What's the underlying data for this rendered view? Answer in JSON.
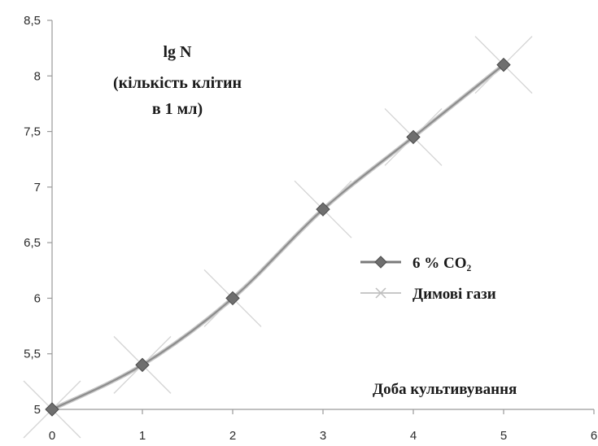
{
  "chart_data": {
    "type": "line",
    "x": [
      0,
      1,
      2,
      3,
      4,
      5
    ],
    "series": [
      {
        "name": "6 % CO₂",
        "values": [
          5,
          5.4,
          6,
          6.8,
          7.45,
          8.1
        ],
        "color": "#7a7a7a",
        "marker": "diamond"
      },
      {
        "name": "Димові гази",
        "values": [
          5,
          5.4,
          6,
          6.8,
          7.45,
          8.1
        ],
        "color": "#c8c8c8",
        "marker": "x"
      }
    ],
    "x_ticks": [
      "0",
      "1",
      "2",
      "3",
      "4",
      "5",
      "6"
    ],
    "y_ticks": [
      "5",
      "5,5",
      "6",
      "6,5",
      "7",
      "7,5",
      "8",
      "8,5"
    ],
    "xlim": [
      0,
      6
    ],
    "ylim": [
      5,
      8.5
    ],
    "ylabel_lines": [
      "lg N",
      "(кількість клітин",
      "в 1 мл)"
    ],
    "xlabel": "Доба культивування",
    "grid": false,
    "legend_position": "right"
  }
}
